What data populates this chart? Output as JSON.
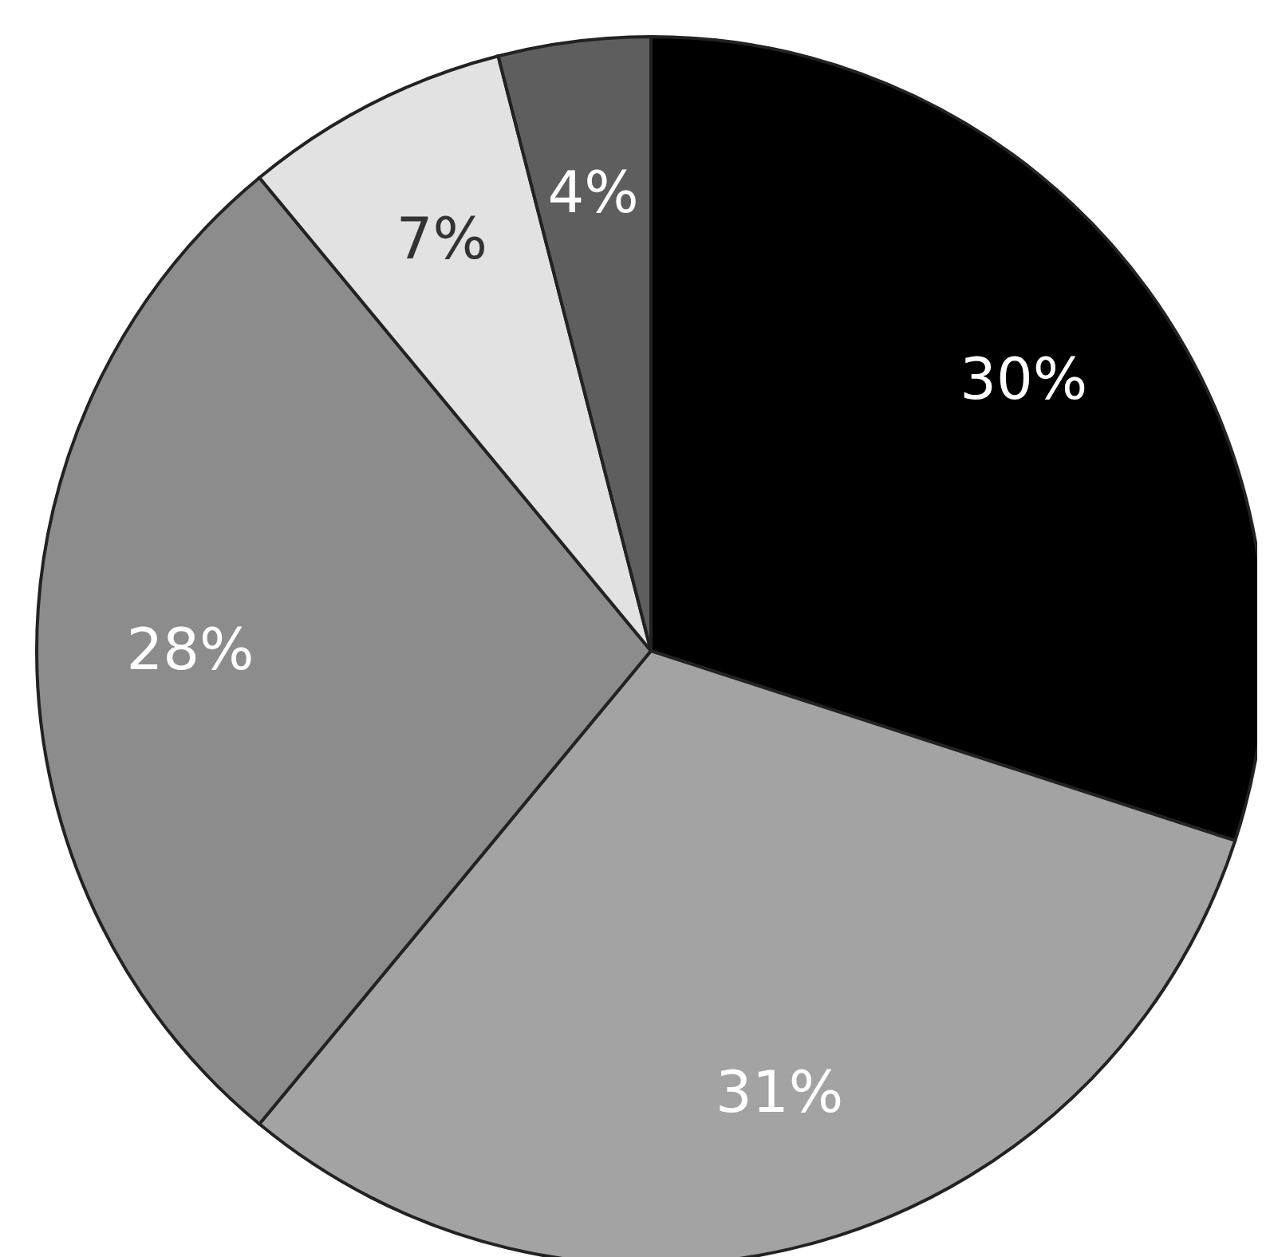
{
  "chart_data": {
    "type": "pie",
    "categories": [
      null,
      null,
      null,
      null,
      null
    ],
    "values": [
      30,
      31,
      28,
      7,
      4
    ],
    "colors": [
      "#000000",
      "#a3a3a3",
      "#8c8c8c",
      "#e2e2e2",
      "#5e5e5e"
    ],
    "value_labels": [
      "30%",
      "31%",
      "28%",
      "7%",
      "4%"
    ]
  }
}
